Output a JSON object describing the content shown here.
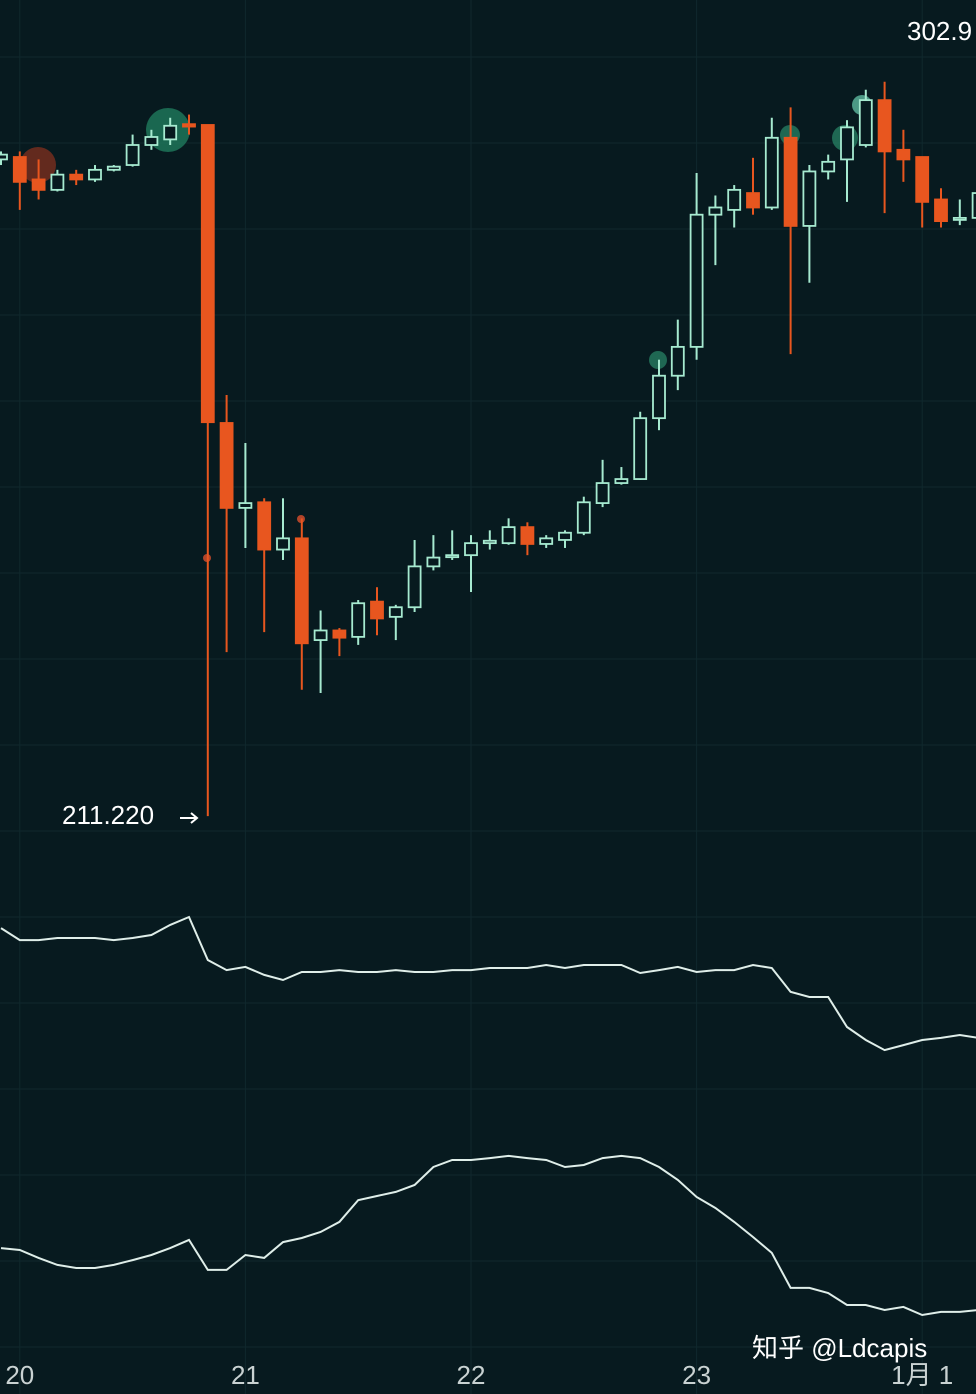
{
  "chart_data": [
    {
      "type": "candlestick",
      "categories": [
        null,
        "20",
        null,
        null,
        null,
        null,
        null,
        null,
        null,
        null,
        null,
        null,
        null,
        "21",
        null,
        null,
        null,
        null,
        null,
        null,
        null,
        null,
        null,
        null,
        null,
        "22",
        null,
        null,
        null,
        null,
        null,
        null,
        null,
        null,
        null,
        null,
        null,
        "23",
        null,
        null,
        null,
        null,
        null,
        null,
        null,
        null,
        null,
        null,
        null,
        "1月 1",
        null,
        null,
        null
      ],
      "open": [
        293.2,
        293.5,
        290.7,
        289.4,
        291.3,
        290.7,
        291.9,
        292.5,
        295.0,
        295.7,
        297.6,
        297.5,
        260.3,
        249.7,
        250.4,
        244.5,
        245.9,
        233.2,
        234.4,
        233.6,
        238.0,
        236.1,
        237.3,
        242.4,
        243.6,
        243.8,
        245.3,
        245.3,
        247.3,
        245.2,
        245.7,
        246.6,
        250.3,
        252.8,
        253.3,
        260.9,
        266.2,
        269.8,
        286.3,
        286.9,
        289.0,
        287.2,
        295.9,
        284.9,
        291.7,
        293.2,
        295.0,
        300.6,
        294.4,
        293.5,
        288.2,
        285.7,
        285.9
      ],
      "high": [
        294.2,
        294.2,
        293.2,
        291.9,
        291.9,
        292.5,
        292.5,
        296.3,
        296.9,
        298.4,
        298.8,
        297.5,
        263.8,
        257.8,
        250.9,
        250.9,
        248.4,
        236.9,
        234.7,
        238.2,
        239.8,
        237.6,
        245.7,
        246.3,
        246.9,
        246.3,
        246.9,
        248.4,
        247.9,
        246.3,
        246.9,
        251.1,
        255.7,
        254.8,
        261.7,
        268.2,
        273.2,
        291.5,
        288.7,
        290.0,
        293.4,
        298.4,
        299.7,
        292.5,
        293.8,
        298.1,
        301.9,
        302.9,
        296.9,
        293.5,
        289.6,
        288.2,
        289.4
      ],
      "low": [
        292.5,
        286.9,
        288.2,
        289.2,
        290.0,
        290.4,
        291.7,
        292.3,
        294.4,
        295.0,
        296.3,
        211.22,
        231.7,
        244.7,
        234.2,
        243.2,
        227.0,
        226.6,
        231.2,
        232.6,
        233.8,
        233.2,
        236.7,
        241.9,
        243.2,
        239.2,
        244.5,
        245.1,
        243.8,
        244.7,
        244.7,
        246.3,
        249.8,
        252.6,
        253.2,
        259.4,
        264.4,
        268.2,
        280.0,
        284.7,
        286.3,
        286.9,
        268.9,
        277.8,
        290.7,
        287.9,
        294.7,
        286.5,
        290.4,
        284.7,
        284.7,
        285.0,
        283.2
      ],
      "close": [
        293.8,
        290.4,
        289.4,
        291.3,
        290.7,
        291.9,
        292.3,
        295.0,
        296.0,
        297.4,
        297.3,
        260.4,
        249.7,
        250.3,
        244.5,
        245.9,
        232.8,
        234.4,
        233.5,
        237.8,
        235.9,
        237.3,
        242.4,
        243.5,
        243.8,
        245.3,
        245.6,
        247.3,
        245.2,
        245.9,
        246.6,
        250.4,
        252.8,
        253.3,
        260.9,
        266.2,
        269.8,
        286.3,
        287.2,
        289.4,
        287.2,
        295.9,
        284.9,
        291.7,
        292.9,
        297.2,
        300.6,
        294.2,
        293.2,
        287.9,
        285.5,
        285.9,
        289.0
      ],
      "up_color": "#a6ead0",
      "down_color": "#e8561f",
      "ylim": [
        204.5,
        313.1
      ],
      "annotations": [
        {
          "text": "211.220"
        },
        {
          "text": "302.9"
        }
      ],
      "watermark": "知乎 @Ldcapis"
    },
    {
      "type": "line",
      "color": "#dfeee9",
      "ylim": [
        0,
        100
      ],
      "values": [
        77.1,
        71.4,
        71.4,
        72.4,
        72.4,
        72.4,
        71.4,
        72.4,
        73.8,
        78.6,
        82.4,
        61.9,
        57.1,
        58.6,
        54.8,
        52.4,
        56.2,
        56.2,
        57.1,
        56.2,
        56.2,
        57.1,
        56.2,
        56.2,
        57.1,
        57.1,
        58.1,
        58.1,
        58.1,
        59.5,
        58.1,
        59.5,
        59.5,
        59.5,
        55.7,
        57.1,
        58.6,
        56.2,
        57.1,
        57.1,
        59.5,
        58.1,
        46.7,
        44.3,
        44.3,
        30.0,
        23.8,
        19.0,
        21.4,
        23.8,
        24.8,
        26.2,
        24.8
      ]
    },
    {
      "type": "line",
      "color": "#dfeee9",
      "ylim": [
        0,
        100
      ],
      "values": [
        38.3,
        37.5,
        34.2,
        31.3,
        30.0,
        30.0,
        31.3,
        33.3,
        35.4,
        38.3,
        41.7,
        29.2,
        29.2,
        35.4,
        34.2,
        40.8,
        42.5,
        45.0,
        49.2,
        58.3,
        60.0,
        61.7,
        64.6,
        72.1,
        75.0,
        75.0,
        75.8,
        76.7,
        75.8,
        75.0,
        72.1,
        72.9,
        75.8,
        76.7,
        75.8,
        72.1,
        66.7,
        59.6,
        55.0,
        49.2,
        42.9,
        36.3,
        21.7,
        21.7,
        19.6,
        14.6,
        14.6,
        12.5,
        13.8,
        10.4,
        11.7,
        11.7,
        12.5
      ]
    }
  ]
}
